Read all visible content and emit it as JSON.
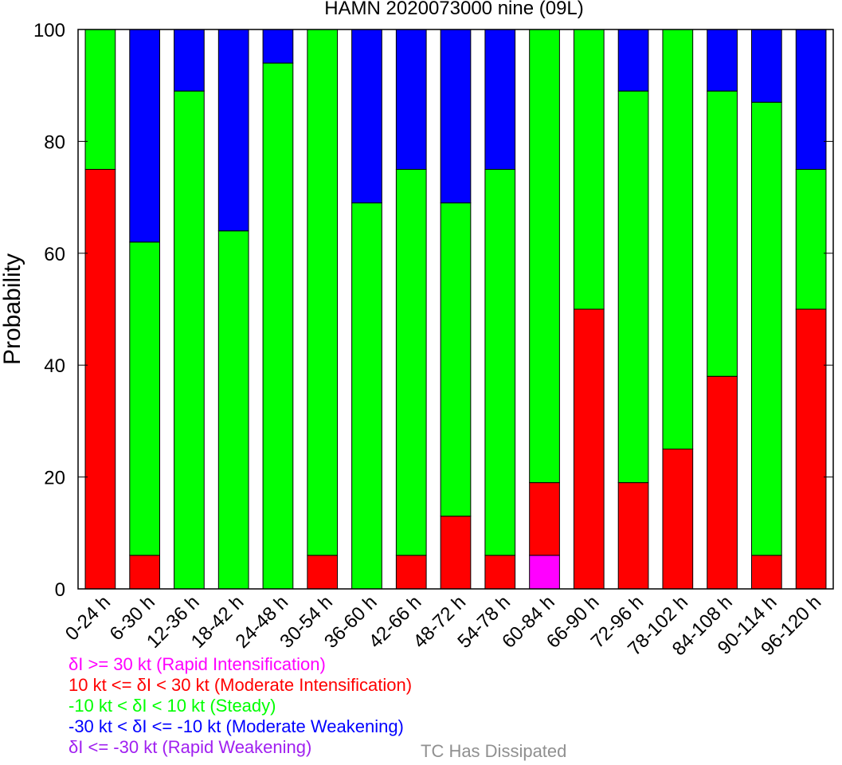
{
  "chart_data": {
    "type": "bar",
    "stacked": true,
    "title": "HAMN 2020073000 nine (09L)",
    "ylabel": "Probability",
    "ylim": [
      0,
      100
    ],
    "yticks": [
      0,
      20,
      40,
      60,
      80,
      100
    ],
    "categories": [
      "0-24 h",
      "6-30 h",
      "12-36 h",
      "18-42 h",
      "24-48 h",
      "30-54 h",
      "36-60 h",
      "42-66 h",
      "48-72 h",
      "54-78 h",
      "60-84 h",
      "66-90 h",
      "72-96 h",
      "78-102 h",
      "84-108 h",
      "90-114 h",
      "96-120 h"
    ],
    "series": [
      {
        "name": "δI <= -30 kt (Rapid Weakening)",
        "color": "#a020f0",
        "values": [
          0,
          0,
          0,
          0,
          0,
          0,
          0,
          0,
          0,
          0,
          0,
          0,
          0,
          0,
          0,
          0,
          0
        ]
      },
      {
        "name": "δI >= 30 kt (Rapid Intensification)",
        "color": "#ff00ff",
        "values": [
          0,
          0,
          0,
          0,
          0,
          0,
          0,
          0,
          0,
          0,
          6,
          0,
          0,
          0,
          0,
          0,
          0
        ]
      },
      {
        "name": "10 kt <= δI < 30 kt (Moderate Intensification)",
        "color": "#ff0000",
        "values": [
          75,
          6,
          0,
          0,
          0,
          6,
          0,
          6,
          13,
          6,
          13,
          50,
          19,
          25,
          38,
          6,
          50
        ]
      },
      {
        "name": "-10 kt < δI < 10 kt (Steady)",
        "color": "#00ff00",
        "values": [
          25,
          56,
          89,
          64,
          94,
          94,
          69,
          69,
          56,
          69,
          81,
          50,
          70,
          75,
          51,
          81,
          25
        ]
      },
      {
        "name": "-30 kt < δI <= -10 kt (Moderate Weakening)",
        "color": "#0000ff",
        "values": [
          0,
          38,
          11,
          36,
          6,
          0,
          31,
          25,
          31,
          25,
          0,
          0,
          11,
          0,
          11,
          13,
          25
        ]
      }
    ],
    "legend_lines": [
      {
        "text": "δI >= 30 kt (Rapid Intensification)",
        "color": "#ff00ff"
      },
      {
        "text": "10 kt <= δI < 30 kt (Moderate Intensification)",
        "color": "#ff0000"
      },
      {
        "text": "-10 kt < δI < 10 kt (Steady)",
        "color": "#00ff00"
      },
      {
        "text": "-30 kt < δI <= -10 kt (Moderate Weakening)",
        "color": "#0000ff"
      },
      {
        "text": "δI <= -30 kt (Rapid Weakening)",
        "color": "#a020f0"
      }
    ],
    "dissipated": {
      "text": "TC Has Dissipated",
      "color": "#909090"
    }
  }
}
